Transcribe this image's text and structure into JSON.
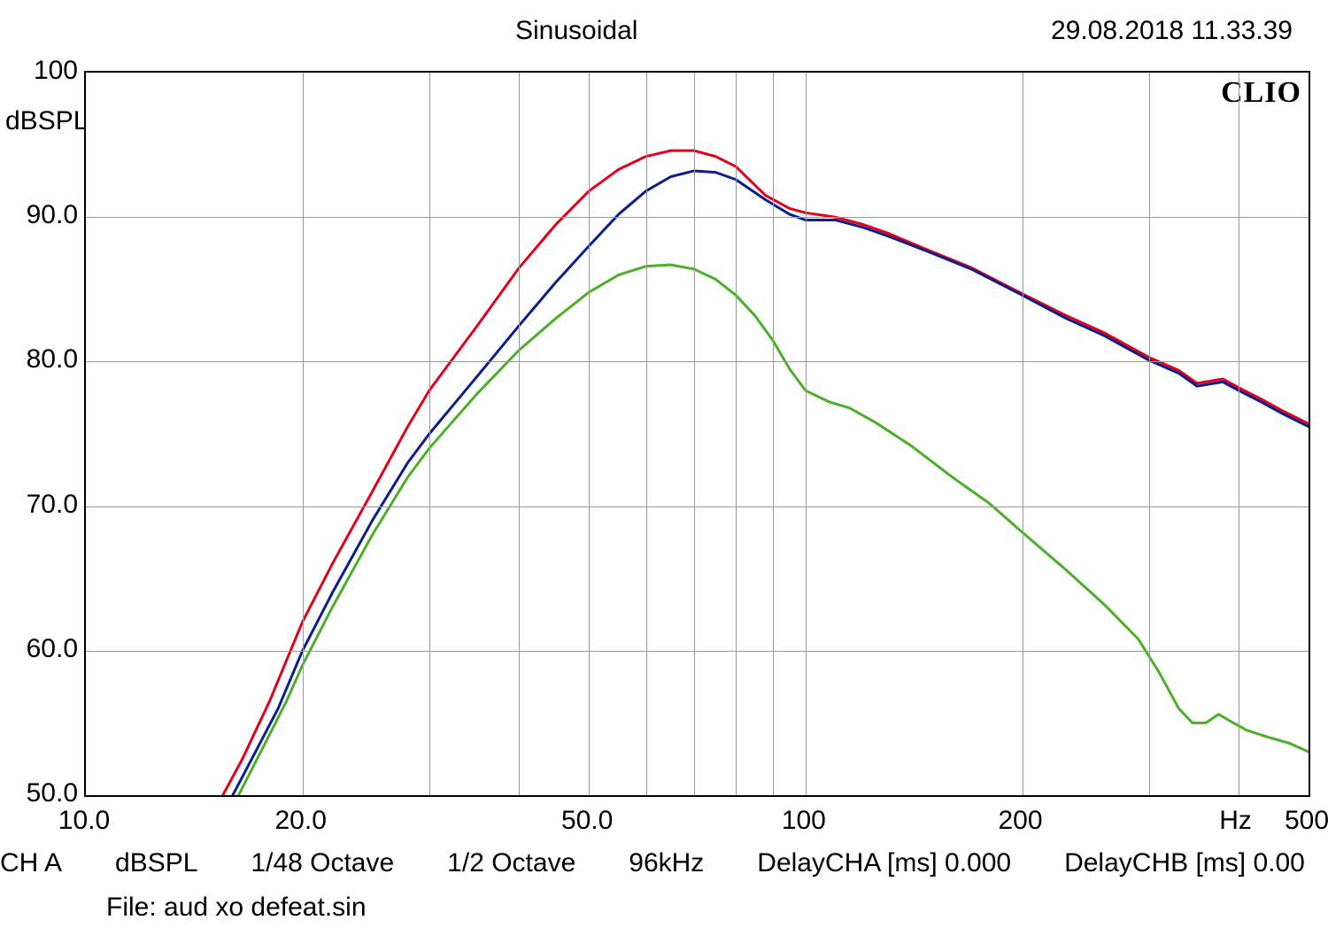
{
  "header": {
    "title": "Sinusoidal",
    "timestamp": "29.08.2018 11.33.39"
  },
  "brand": "CLIO",
  "footer": {
    "line1_parts": [
      "CH A",
      "dBSPL",
      "1/48 Octave",
      "1/2 Octave",
      "96kHz",
      "DelayCHA [ms] 0.000",
      "DelayCHB [ms] 0.00"
    ],
    "file_label": "File: aud xo defeat.sin"
  },
  "chart": {
    "type": "line",
    "background_color": "#ffffff",
    "grid_color": "#9a9a9a",
    "border_color": "#000000",
    "line_width": 3,
    "x_scale": "log",
    "xlim": [
      10,
      500
    ],
    "ylim": [
      50,
      100
    ],
    "y_ticks": [
      50.0,
      60.0,
      70.0,
      80.0,
      90.0,
      100
    ],
    "y_tick_labels": [
      "50.0",
      "60.0",
      "70.0",
      "80.0",
      "90.0",
      "100"
    ],
    "y_axis_label": "dBSPL",
    "x_major_ticks": [
      10.0,
      20.0,
      50.0,
      100,
      200,
      500
    ],
    "x_major_labels": [
      "10.0",
      "20.0",
      "50.0",
      "100",
      "200",
      "500"
    ],
    "x_unit_label": "Hz",
    "x_unit_pos_freq": 400,
    "x_minor_ticks": [
      30,
      40,
      60,
      70,
      80,
      90,
      300,
      400
    ],
    "label_fontsize": 30,
    "series": [
      {
        "name": "red",
        "color": "#e2001a",
        "points": [
          [
            15.5,
            50.0
          ],
          [
            16.5,
            52.5
          ],
          [
            18,
            56.5
          ],
          [
            20,
            62.0
          ],
          [
            22,
            66.0
          ],
          [
            25,
            71.0
          ],
          [
            28,
            75.5
          ],
          [
            30,
            78.0
          ],
          [
            35,
            82.5
          ],
          [
            40,
            86.5
          ],
          [
            45,
            89.5
          ],
          [
            50,
            91.8
          ],
          [
            55,
            93.3
          ],
          [
            60,
            94.2
          ],
          [
            65,
            94.6
          ],
          [
            70,
            94.6
          ],
          [
            75,
            94.2
          ],
          [
            80,
            93.5
          ],
          [
            88,
            91.5
          ],
          [
            95,
            90.6
          ],
          [
            100,
            90.3
          ],
          [
            110,
            90.0
          ],
          [
            120,
            89.5
          ],
          [
            130,
            88.9
          ],
          [
            150,
            87.6
          ],
          [
            170,
            86.5
          ],
          [
            200,
            84.7
          ],
          [
            230,
            83.2
          ],
          [
            260,
            82.0
          ],
          [
            300,
            80.3
          ],
          [
            330,
            79.4
          ],
          [
            350,
            78.5
          ],
          [
            380,
            78.8
          ],
          [
            400,
            78.2
          ],
          [
            430,
            77.4
          ],
          [
            460,
            76.6
          ],
          [
            500,
            75.7
          ]
        ]
      },
      {
        "name": "blue",
        "color": "#0a1e8c",
        "points": [
          [
            16,
            50.0
          ],
          [
            17,
            52.5
          ],
          [
            18.5,
            56.0
          ],
          [
            20,
            60.0
          ],
          [
            22,
            64.0
          ],
          [
            25,
            69.0
          ],
          [
            28,
            73.0
          ],
          [
            30,
            75.0
          ],
          [
            35,
            79.0
          ],
          [
            40,
            82.5
          ],
          [
            45,
            85.5
          ],
          [
            50,
            88.0
          ],
          [
            55,
            90.2
          ],
          [
            60,
            91.8
          ],
          [
            65,
            92.8
          ],
          [
            70,
            93.2
          ],
          [
            75,
            93.1
          ],
          [
            80,
            92.6
          ],
          [
            88,
            91.2
          ],
          [
            95,
            90.2
          ],
          [
            100,
            89.8
          ],
          [
            110,
            89.8
          ],
          [
            120,
            89.3
          ],
          [
            130,
            88.7
          ],
          [
            150,
            87.5
          ],
          [
            170,
            86.4
          ],
          [
            200,
            84.6
          ],
          [
            230,
            83.0
          ],
          [
            260,
            81.8
          ],
          [
            300,
            80.1
          ],
          [
            330,
            79.2
          ],
          [
            350,
            78.3
          ],
          [
            380,
            78.6
          ],
          [
            400,
            78.0
          ],
          [
            430,
            77.2
          ],
          [
            460,
            76.4
          ],
          [
            500,
            75.5
          ]
        ]
      },
      {
        "name": "green",
        "color": "#4caf2a",
        "points": [
          [
            16.3,
            50.0
          ],
          [
            17.5,
            53.0
          ],
          [
            19,
            56.5
          ],
          [
            20,
            59.0
          ],
          [
            22,
            63.0
          ],
          [
            25,
            68.0
          ],
          [
            28,
            72.0
          ],
          [
            30,
            74.0
          ],
          [
            35,
            77.8
          ],
          [
            40,
            80.8
          ],
          [
            45,
            83.0
          ],
          [
            50,
            84.8
          ],
          [
            55,
            86.0
          ],
          [
            60,
            86.6
          ],
          [
            65,
            86.7
          ],
          [
            70,
            86.4
          ],
          [
            75,
            85.7
          ],
          [
            80,
            84.6
          ],
          [
            85,
            83.2
          ],
          [
            90,
            81.5
          ],
          [
            95,
            79.5
          ],
          [
            100,
            78.0
          ],
          [
            108,
            77.2
          ],
          [
            115,
            76.8
          ],
          [
            125,
            75.8
          ],
          [
            140,
            74.2
          ],
          [
            160,
            72.0
          ],
          [
            180,
            70.2
          ],
          [
            200,
            68.2
          ],
          [
            230,
            65.6
          ],
          [
            260,
            63.2
          ],
          [
            290,
            60.8
          ],
          [
            310,
            58.5
          ],
          [
            330,
            56.0
          ],
          [
            345,
            55.0
          ],
          [
            360,
            55.0
          ],
          [
            375,
            55.6
          ],
          [
            390,
            55.1
          ],
          [
            410,
            54.5
          ],
          [
            440,
            54.0
          ],
          [
            470,
            53.6
          ],
          [
            500,
            53.0
          ]
        ]
      }
    ]
  }
}
